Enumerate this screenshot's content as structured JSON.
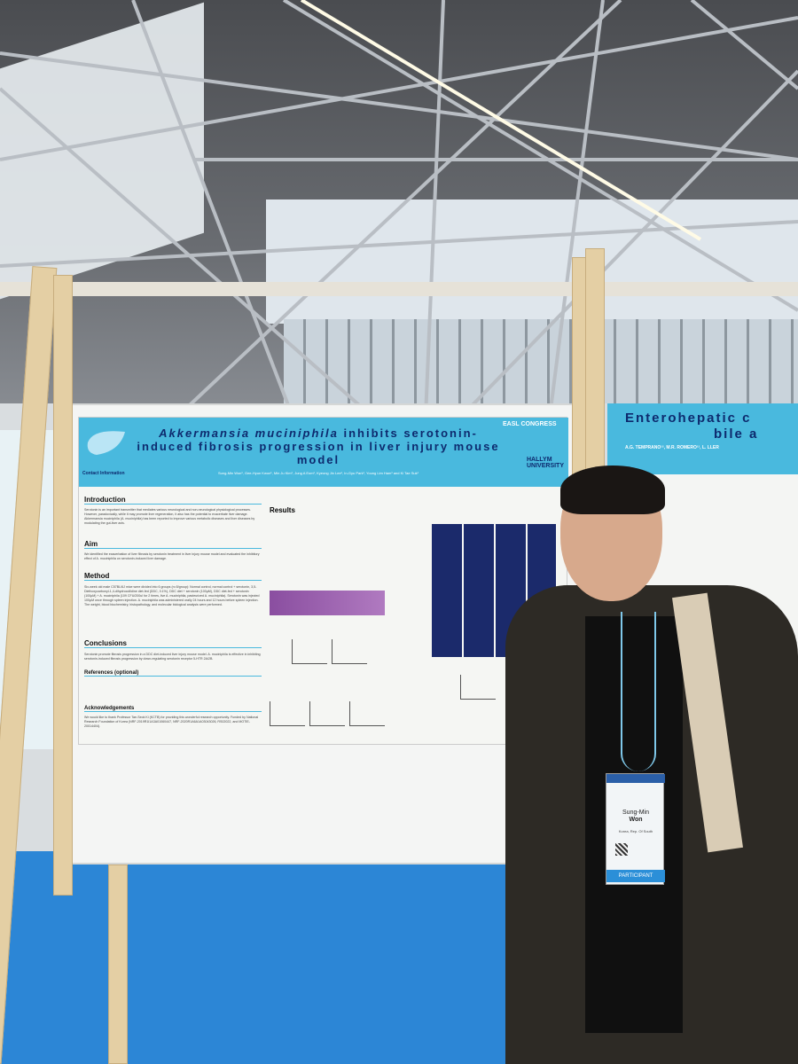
{
  "scene": {
    "description_tags": [
      "ceiling-truss",
      "poster-board",
      "person"
    ]
  },
  "poster": {
    "title_italic": "Akkermansia muciniphila",
    "title_rest": " inhibits serotonin-induced fibrosis progression in liver injury mouse model",
    "authors": "Sung-Min Won¹, Gee-Hyun Kwon¹, Min Ju Kim¹, Jung A Eom¹, Kyeong Jin Lee¹, In-Gyu Park¹, Young Lim Ham¹ and Ki Tae Suk¹",
    "congress": "EASL CONGRESS",
    "university": "HALLYM UNIVERSITY",
    "contact": "Contact Information",
    "sections": {
      "introduction": "Introduction",
      "aim": "Aim",
      "method": "Method",
      "conclusions": "Conclusions",
      "references": "References (optional)",
      "acknowledgements": "Acknowledgements",
      "results": "Results"
    },
    "texts": {
      "introduction": "Serotonin is an important transmitter that mediates various neurological and non-neurological physiological processes. However, paradoxically, while it may promote liver regeneration, it also has the potential to exacerbate liver damage. Akkermansia muciniphila (A. muciniphila) has been reported to improve various metabolic diseases and liver diseases by modulating the gut-liver axis.",
      "aim": "We identified the exacerbation of liver fibrosis by serotonin treatment in liver injury mouse model and evaluated the inhibitory effect of A. muciniphila on serotonin-induced liver damage.",
      "method": "Six-week old male C57BL/6J mice were divided into 6 groups (n=5/group): Normal control, normal control + serotonin, 3,5-Diethoxycarbonyl-1,4-dihydrocollidine diet-fed (DDC, 0.1%), DDC diet + serotonin (100μM), DDC diet-fed + serotonin (100μM) + A. muciniphila (109 CFU/200ul for 2 times, live A. muciniphila, pasteurized A. muciniphila). Serotonin was injected 100μM once through spleen injection. A. muciniphila was administered orally 24 hours and 12 hours before spleen injection. The weight, blood biochemistry, histopathology, and molecular biological analysis were performed.",
      "conclusions": "Serotonin promote fibrosis progression in a DDC diet-induced liver injury mouse model. A. muciniphila is effective in inhibiting serotonin-induced fibrosis progression by down-regulating serotonin receptor 5-HTR 2A/2B.",
      "acknowledgements": "We would like to thank Professor Tae-Seok Ki (KCTB) for providing this wonderful research opportunity. Funded by National Research Foundation of Korea (NRF-2019R1I1A3A01060447, NRF-2020R1A6A1A03043026, RS02022, and MOTIE-20014404)."
    }
  },
  "right_poster": {
    "title_line1": "Enterohepatic c",
    "title_line2": "bile a",
    "authors": "A.G. TEMPRANO¹², M.R. ROMERO¹², L. LLER"
  },
  "badge": {
    "name_first": "Sung-Min",
    "name_last": "Won",
    "affiliation": "Korea, Rep. Of South",
    "role": "PARTICIPANT"
  },
  "colors": {
    "poster_header": "#49b9de",
    "title": "#0d2a6e",
    "floor": "#2c86d6"
  }
}
